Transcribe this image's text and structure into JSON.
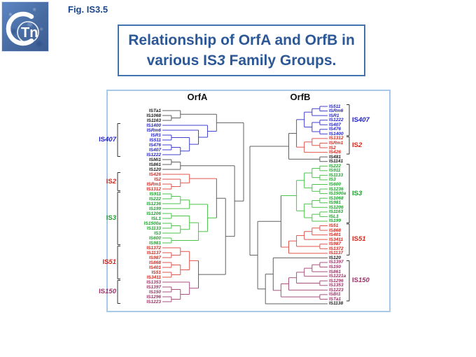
{
  "logo": {
    "text": "Tn"
  },
  "fig_label": "Fig. IS3.5",
  "title": {
    "line1": "Relationship of OrfA and OrfB in",
    "line2_pre": "various IS",
    "line2_italic": "3",
    "line2_post": " Family Groups."
  },
  "colors": {
    "blue": "#2323c8",
    "red": "#d3281e",
    "green": "#1ea12e",
    "maroon": "#993366",
    "black": "#1a1a1a",
    "gray": "#555555"
  },
  "line_colors": {
    "blue": "#4040d0",
    "red": "#e0564e",
    "green": "#4cc44c",
    "maroon": "#a8527e",
    "black": "#606060",
    "gray": "#606060"
  },
  "trees": {
    "orfa": {
      "header": "OrfA",
      "leaves": [
        {
          "n": "ISTa1",
          "c": "black"
        },
        {
          "n": "IS1068",
          "c": "black"
        },
        {
          "n": "IS1163",
          "c": "black"
        },
        {
          "n": "IS1400",
          "c": "blue"
        },
        {
          "n": "ISRm6",
          "c": "blue"
        },
        {
          "n": "ISR1",
          "c": "blue"
        },
        {
          "n": "IS511",
          "c": "blue"
        },
        {
          "n": "IS476",
          "c": "blue"
        },
        {
          "n": "IS407",
          "c": "blue"
        },
        {
          "n": "IS1222",
          "c": "blue"
        },
        {
          "n": "ISMi1",
          "c": "black"
        },
        {
          "n": "IS861",
          "c": "black"
        },
        {
          "n": "IS120",
          "c": "black"
        },
        {
          "n": "IS426",
          "c": "red"
        },
        {
          "n": "IS2",
          "c": "red"
        },
        {
          "n": "ISRm1",
          "c": "red"
        },
        {
          "n": "IS1312",
          "c": "red"
        },
        {
          "n": "IS911",
          "c": "green"
        },
        {
          "n": "IS222",
          "c": "green"
        },
        {
          "n": "IS1236",
          "c": "green"
        },
        {
          "n": "IS199",
          "c": "green"
        },
        {
          "n": "IS1206",
          "c": "green"
        },
        {
          "n": "ISL1",
          "c": "green"
        },
        {
          "n": "IS1500a",
          "c": "green"
        },
        {
          "n": "IS1133",
          "c": "green"
        },
        {
          "n": "IS3",
          "c": "green"
        },
        {
          "n": "IS600",
          "c": "green"
        },
        {
          "n": "IS981",
          "c": "green"
        },
        {
          "n": "IS1372",
          "c": "red"
        },
        {
          "n": "IS1137",
          "c": "red"
        },
        {
          "n": "IS987",
          "c": "red"
        },
        {
          "n": "IS868",
          "c": "red"
        },
        {
          "n": "IS401",
          "c": "red"
        },
        {
          "n": "IS51",
          "c": "red"
        },
        {
          "n": "IS3411",
          "c": "red"
        },
        {
          "n": "IS1353",
          "c": "maroon"
        },
        {
          "n": "IS1397",
          "c": "maroon"
        },
        {
          "n": "IS150",
          "c": "maroon"
        },
        {
          "n": "IS1296",
          "c": "maroon"
        },
        {
          "n": "IS1223",
          "c": "maroon"
        }
      ],
      "topology": [
        [
          [
            0,
            [
              1,
              2
            ]
          ],
          [
            3,
            [
              4,
              [
                [
                  5,
                  6
                ],
                [
                  [
                    7,
                    8
                  ],
                  9
                ]
              ]
            ]
          ]
        ],
        [
          [
            [
              10,
              11
            ],
            12
          ],
          [
            [
              [
                13,
                [
                  14,
                  [
                    15,
                    16
                  ]
                ]
              ],
              [
                [
                  [
                    [
                      17,
                      18
                    ],
                    19
                  ],
                  20
                ],
                [
                  [
                    [
                      21,
                      22
                    ],
                    [
                      [
                        23,
                        24
                      ],
                      25
                    ]
                  ],
                  [
                    26,
                    27
                  ]
                ]
              ]
            ],
            [
              [
                [
                  28,
                  [
                    29,
                    30
                  ]
                ],
                [
                  [
                    31,
                    32
                  ],
                  [
                    33,
                    34
                  ]
                ]
              ],
              [
                35,
                [
                  [
                    36,
                    37
                  ],
                  [
                    38,
                    39
                  ]
                ]
              ]
            ]
          ]
        ]
      ],
      "groups": [
        {
          "label": "IS407",
          "color": "blue",
          "from": 3,
          "to": 9
        },
        {
          "label": "IS2",
          "color": "red",
          "from": 13,
          "to": 16
        },
        {
          "label": "IS3",
          "color": "green",
          "from": 17,
          "to": 27
        },
        {
          "label": "IS51",
          "color": "red",
          "from": 28,
          "to": 34
        },
        {
          "label": "IS150",
          "color": "maroon",
          "from": 35,
          "to": 39
        }
      ]
    },
    "orfb": {
      "header": "OrfB",
      "leaves": [
        {
          "n": "IS511",
          "c": "blue"
        },
        {
          "n": "ISRm6",
          "c": "blue"
        },
        {
          "n": "ISR1",
          "c": "blue"
        },
        {
          "n": "IS1222",
          "c": "blue"
        },
        {
          "n": "IS407",
          "c": "blue"
        },
        {
          "n": "IS476",
          "c": "blue"
        },
        {
          "n": "IS1400",
          "c": "blue"
        },
        {
          "n": "IS1312",
          "c": "red"
        },
        {
          "n": "ISRm1",
          "c": "red"
        },
        {
          "n": "IS2",
          "c": "red"
        },
        {
          "n": "IS426",
          "c": "red"
        },
        {
          "n": "IS481",
          "c": "black"
        },
        {
          "n": "IS1141",
          "c": "black"
        },
        {
          "n": "IS222",
          "c": "green"
        },
        {
          "n": "IS911",
          "c": "green"
        },
        {
          "n": "IS1133",
          "c": "green"
        },
        {
          "n": "IS3",
          "c": "green"
        },
        {
          "n": "IS600",
          "c": "green"
        },
        {
          "n": "IS1236",
          "c": "green"
        },
        {
          "n": "IS1500a",
          "c": "green"
        },
        {
          "n": "IS1068",
          "c": "green"
        },
        {
          "n": "IS981",
          "c": "green"
        },
        {
          "n": "IS1206",
          "c": "green"
        },
        {
          "n": "IS1163",
          "c": "green"
        },
        {
          "n": "ISL1",
          "c": "green"
        },
        {
          "n": "IS199",
          "c": "green"
        },
        {
          "n": "IS51",
          "c": "red"
        },
        {
          "n": "IS868",
          "c": "red"
        },
        {
          "n": "IS401",
          "c": "red"
        },
        {
          "n": "IS3411",
          "c": "red"
        },
        {
          "n": "IS987",
          "c": "red"
        },
        {
          "n": "IS1372",
          "c": "red"
        },
        {
          "n": "IS1137",
          "c": "red"
        },
        {
          "n": "IS120",
          "c": "black"
        },
        {
          "n": "IS1397",
          "c": "maroon"
        },
        {
          "n": "IS150",
          "c": "maroon"
        },
        {
          "n": "IS861",
          "c": "maroon"
        },
        {
          "n": "IS1221a",
          "c": "maroon"
        },
        {
          "n": "IS1296",
          "c": "maroon"
        },
        {
          "n": "IS1353",
          "c": "maroon"
        },
        {
          "n": "IS1223",
          "c": "maroon"
        },
        {
          "n": "ISBt1",
          "c": "maroon"
        },
        {
          "n": "ISTa1",
          "c": "maroon"
        },
        {
          "n": "IS1138",
          "c": "black"
        }
      ],
      "topology": [
        [
          [
            [
              [
                [
                  0,
                  1
                ],
                2
              ],
              [
                [
                  3,
                  4
                ],
                [
                  5,
                  6
                ]
              ]
            ],
            [
              [
                7,
                [
                  8,
                  9
                ]
              ],
              10
            ]
          ],
          [
            11,
            12
          ]
        ],
        [
          [
            [
              [
                [
                  [
                    13,
                    14
                  ],
                  [
                    15,
                    16
                  ]
                ],
                [
                  17,
                  [
                    18,
                    19
                  ]
                ]
              ],
              [
                [
                  [
                    20,
                    21
                  ],
                  22
                ],
                [
                  [
                    23,
                    24
                  ],
                  25
                ]
              ]
            ],
            [
              [
                [
                  [
                    [
                      26,
                      27
                    ],
                    28
                  ],
                  29
                ],
                [
                  30,
                  31
                ]
              ],
              32
            ]
          ],
          [
            [
              33,
              [
                [
                  [
                    [
                      [
                        [
                          34,
                          35
                        ],
                        36
                      ],
                      37
                    ],
                    [
                      38,
                      39
                    ]
                  ],
                  40
                ],
                [
                  41,
                  42
                ]
              ]
            ],
            43
          ]
        ]
      ],
      "groups": [
        {
          "label": "IS407",
          "color": "blue",
          "from": 0,
          "to": 6
        },
        {
          "label": "IS2",
          "color": "red",
          "from": 7,
          "to": 10
        },
        {
          "label": "IS3",
          "color": "green",
          "from": 13,
          "to": 25
        },
        {
          "label": "IS51",
          "color": "red",
          "from": 26,
          "to": 32
        },
        {
          "label": "IS150",
          "color": "maroon",
          "from": 34,
          "to": 42
        }
      ]
    }
  }
}
